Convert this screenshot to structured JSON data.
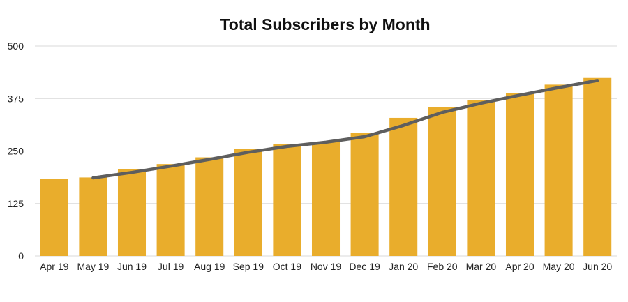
{
  "chart_data": {
    "type": "bar",
    "title": "Total Subscribers by Month",
    "xlabel": "",
    "ylabel": "",
    "categories": [
      "Apr 19",
      "May 19",
      "Jun 19",
      "Jul 19",
      "Aug 19",
      "Sep 19",
      "Oct 19",
      "Nov 19",
      "Dec 19",
      "Jan 20",
      "Feb 20",
      "Mar 20",
      "Apr 20",
      "May 20",
      "Jun 20"
    ],
    "series": [
      {
        "type": "bar",
        "values": [
          183,
          187,
          207,
          219,
          235,
          255,
          266,
          272,
          293,
          329,
          354,
          372,
          388,
          408,
          424
        ]
      },
      {
        "type": "line",
        "values": [
          null,
          186,
          199,
          214,
          230,
          247,
          261,
          271,
          284,
          311,
          342,
          364,
          383,
          401,
          418
        ]
      }
    ],
    "ylim": [
      0,
      500
    ],
    "yticks": [
      0,
      125,
      250,
      375,
      500
    ],
    "grid": true,
    "legend": "none",
    "colors": {
      "bar": "#E9AD2C",
      "line": "#5E5E5E",
      "grid": "#D9D9D9"
    }
  }
}
